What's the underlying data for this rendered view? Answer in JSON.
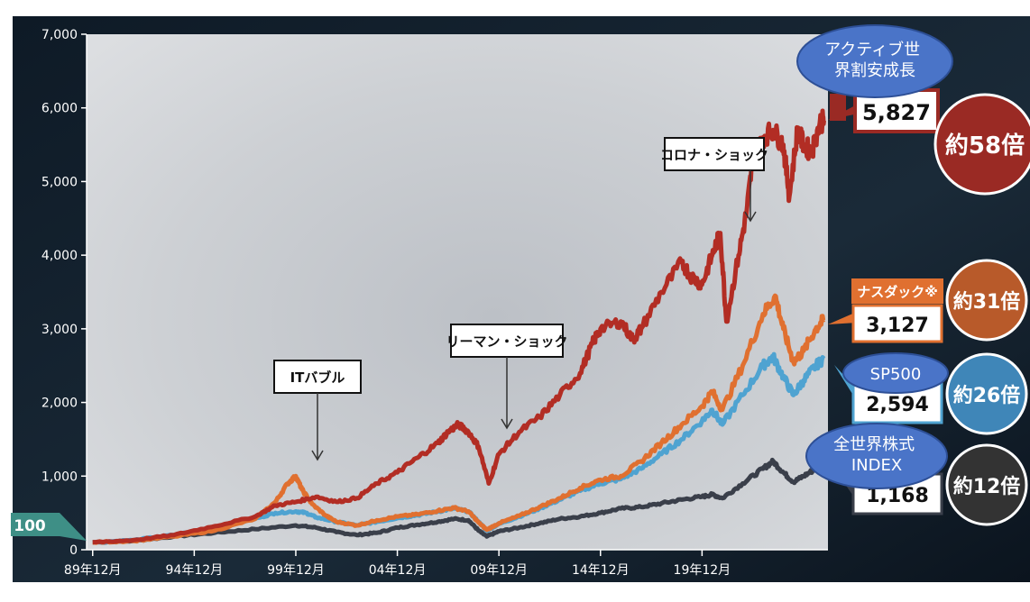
{
  "chart_data": {
    "type": "line",
    "ylim": [
      0,
      7000
    ],
    "yticks": [
      "0",
      "1,000",
      "2,000",
      "3,000",
      "4,000",
      "5,000",
      "6,000",
      "7,000"
    ],
    "xticks": [
      {
        "label": "89年12月",
        "t": 0
      },
      {
        "label": "94年12月",
        "t": 5
      },
      {
        "label": "99年12月",
        "t": 10
      },
      {
        "label": "04年12月",
        "t": 15
      },
      {
        "label": "09年12月",
        "t": 20
      },
      {
        "label": "14年12月",
        "t": 25
      },
      {
        "label": "19年12月",
        "t": 30
      }
    ],
    "base_label": "100",
    "series": [
      {
        "name": "全世界株式INDEX",
        "color": "#3a3f4a",
        "points": [
          [
            0,
            100
          ],
          [
            2,
            120
          ],
          [
            4,
            180
          ],
          [
            6,
            230
          ],
          [
            8,
            280
          ],
          [
            10,
            330
          ],
          [
            11,
            300
          ],
          [
            12,
            240
          ],
          [
            13,
            200
          ],
          [
            14,
            230
          ],
          [
            15,
            300
          ],
          [
            16,
            340
          ],
          [
            17,
            380
          ],
          [
            17.8,
            420
          ],
          [
            18.5,
            400
          ],
          [
            19,
            260
          ],
          [
            19.4,
            180
          ],
          [
            20,
            250
          ],
          [
            21,
            300
          ],
          [
            22,
            360
          ],
          [
            23,
            420
          ],
          [
            24,
            450
          ],
          [
            25,
            500
          ],
          [
            26,
            560
          ],
          [
            27,
            580
          ],
          [
            28,
            630
          ],
          [
            29,
            680
          ],
          [
            30,
            720
          ],
          [
            30.5,
            750
          ],
          [
            31,
            700
          ],
          [
            32,
            900
          ],
          [
            33,
            1100
          ],
          [
            33.5,
            1200
          ],
          [
            34,
            1050
          ],
          [
            34.5,
            920
          ],
          [
            35,
            1000
          ],
          [
            35.6,
            1100
          ],
          [
            36,
            1168
          ]
        ]
      },
      {
        "name": "SP500",
        "color": "#4fa3d1",
        "points": [
          [
            0,
            100
          ],
          [
            2,
            130
          ],
          [
            4,
            200
          ],
          [
            6,
            300
          ],
          [
            8,
            420
          ],
          [
            9,
            500
          ],
          [
            10,
            520
          ],
          [
            10.5,
            500
          ],
          [
            11,
            440
          ],
          [
            12,
            380
          ],
          [
            13,
            330
          ],
          [
            14,
            380
          ],
          [
            15,
            430
          ],
          [
            16,
            470
          ],
          [
            17,
            520
          ],
          [
            17.8,
            560
          ],
          [
            18.5,
            520
          ],
          [
            19,
            380
          ],
          [
            19.4,
            260
          ],
          [
            20,
            350
          ],
          [
            21,
            450
          ],
          [
            22,
            560
          ],
          [
            23,
            680
          ],
          [
            24,
            800
          ],
          [
            25,
            900
          ],
          [
            26,
            960
          ],
          [
            27,
            1100
          ],
          [
            28,
            1300
          ],
          [
            29,
            1500
          ],
          [
            30,
            1750
          ],
          [
            30.5,
            1900
          ],
          [
            31,
            1700
          ],
          [
            32,
            2100
          ],
          [
            33,
            2500
          ],
          [
            33.5,
            2620
          ],
          [
            34,
            2350
          ],
          [
            34.5,
            2100
          ],
          [
            35,
            2300
          ],
          [
            35.6,
            2500
          ],
          [
            36,
            2594
          ]
        ]
      },
      {
        "name": "ナスダック※",
        "color": "#e07030",
        "points": [
          [
            0,
            100
          ],
          [
            2,
            120
          ],
          [
            4,
            180
          ],
          [
            6,
            260
          ],
          [
            8,
            420
          ],
          [
            9,
            650
          ],
          [
            9.6,
            900
          ],
          [
            10,
            1000
          ],
          [
            10.3,
            820
          ],
          [
            10.8,
            620
          ],
          [
            11.5,
            460
          ],
          [
            12,
            380
          ],
          [
            13,
            330
          ],
          [
            14,
            400
          ],
          [
            15,
            450
          ],
          [
            16,
            480
          ],
          [
            17,
            530
          ],
          [
            17.8,
            570
          ],
          [
            18.5,
            520
          ],
          [
            19,
            370
          ],
          [
            19.4,
            270
          ],
          [
            20,
            360
          ],
          [
            21,
            460
          ],
          [
            22,
            580
          ],
          [
            23,
            700
          ],
          [
            24,
            840
          ],
          [
            25,
            950
          ],
          [
            26,
            1000
          ],
          [
            27,
            1200
          ],
          [
            28,
            1450
          ],
          [
            29,
            1700
          ],
          [
            30,
            1950
          ],
          [
            30.5,
            2150
          ],
          [
            31,
            1900
          ],
          [
            32,
            2500
          ],
          [
            33,
            3200
          ],
          [
            33.6,
            3450
          ],
          [
            34,
            3000
          ],
          [
            34.5,
            2550
          ],
          [
            35,
            2700
          ],
          [
            35.6,
            3000
          ],
          [
            36,
            3127
          ]
        ]
      },
      {
        "name": "アクティブ世界割安成長",
        "color": "#b22d24",
        "points": [
          [
            0,
            100
          ],
          [
            2,
            130
          ],
          [
            4,
            200
          ],
          [
            6,
            320
          ],
          [
            8,
            450
          ],
          [
            9,
            600
          ],
          [
            10,
            650
          ],
          [
            11,
            720
          ],
          [
            12,
            650
          ],
          [
            13,
            700
          ],
          [
            14,
            900
          ],
          [
            15,
            1050
          ],
          [
            16,
            1250
          ],
          [
            17,
            1450
          ],
          [
            17.5,
            1600
          ],
          [
            18,
            1700
          ],
          [
            18.5,
            1600
          ],
          [
            19,
            1400
          ],
          [
            19.5,
            900
          ],
          [
            20,
            1300
          ],
          [
            21,
            1600
          ],
          [
            22,
            1800
          ],
          [
            23,
            2100
          ],
          [
            24,
            2400
          ],
          [
            24.6,
            2800
          ],
          [
            25,
            3000
          ],
          [
            26,
            3100
          ],
          [
            26.6,
            2850
          ],
          [
            27,
            3000
          ],
          [
            28,
            3500
          ],
          [
            29,
            3900
          ],
          [
            29.5,
            3700
          ],
          [
            30,
            3600
          ],
          [
            30.5,
            4000
          ],
          [
            30.9,
            4300
          ],
          [
            31.2,
            3100
          ],
          [
            31.8,
            4000
          ],
          [
            32.2,
            4600
          ],
          [
            32.5,
            5300
          ],
          [
            33,
            5600
          ],
          [
            33.5,
            5700
          ],
          [
            34,
            5500
          ],
          [
            34.3,
            4800
          ],
          [
            34.7,
            5700
          ],
          [
            35,
            5500
          ],
          [
            35.4,
            5400
          ],
          [
            35.8,
            5800
          ],
          [
            36,
            5827
          ]
        ]
      }
    ],
    "end_labels": [
      {
        "name": "アクティブ世界割安成長",
        "value": "5,827",
        "multiple": "約58倍",
        "color": "#9a2a24"
      },
      {
        "name": "ナスダック※",
        "value": "3,127",
        "multiple": "約31倍",
        "color": "#b85a2a"
      },
      {
        "name": "SP500",
        "value": "2,594",
        "multiple": "約26倍",
        "color": "#3f86b8"
      },
      {
        "name": "全世界株式INDEX",
        "value": "1,168",
        "multiple": "約12倍",
        "color": "#333333"
      }
    ],
    "annotations": [
      {
        "text": "ITバブル",
        "t": 10.2
      },
      {
        "text": "リーマン・ショック",
        "t": 19.5
      },
      {
        "text": "コロナ・ショック",
        "t": 30.8
      }
    ],
    "bubbles": [
      "アクティブ世\n界割安成長",
      "SP500",
      "全世界株式\nINDEX"
    ]
  }
}
